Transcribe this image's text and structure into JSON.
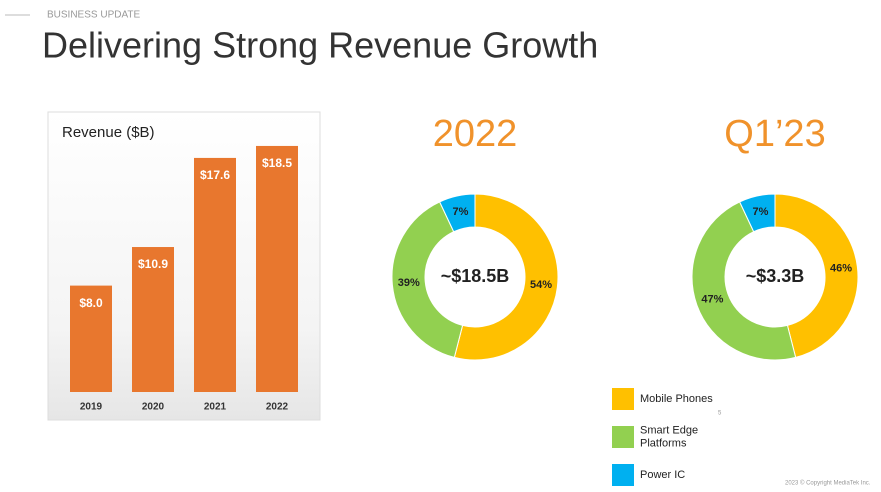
{
  "header": {
    "section": "BUSINESS UPDATE",
    "title": "Delivering Strong Revenue Growth",
    "page_number": "5",
    "footer": "2023 © Copyright MediaTek Inc."
  },
  "legend": [
    {
      "name": "Mobile Phones",
      "color": "#FFC000"
    },
    {
      "name": "Smart Edge\nPlatforms",
      "color": "#92D050"
    },
    {
      "name": "Power IC",
      "color": "#00B0F0"
    }
  ],
  "chart_data": [
    {
      "type": "bar",
      "title": "Revenue ($B)",
      "categories": [
        "2019",
        "2020",
        "2021",
        "2022"
      ],
      "values": [
        8.0,
        10.9,
        17.6,
        18.5
      ],
      "value_labels": [
        "$8.0",
        "$10.9",
        "$17.6",
        "$18.5"
      ],
      "color": "#E8772E"
    },
    {
      "type": "pie",
      "title": "2022",
      "center_label": "~$18.5B",
      "values": [
        54,
        39,
        7
      ],
      "value_labels": [
        "54%",
        "39%",
        "7%"
      ],
      "colors": [
        "#FFC000",
        "#92D050",
        "#00B0F0"
      ]
    },
    {
      "type": "pie",
      "title": "Q1’23",
      "center_label": "~$3.3B",
      "values": [
        46,
        47,
        7
      ],
      "value_labels": [
        "46%",
        "47%",
        "7%"
      ],
      "colors": [
        "#FFC000",
        "#92D050",
        "#00B0F0"
      ]
    }
  ]
}
